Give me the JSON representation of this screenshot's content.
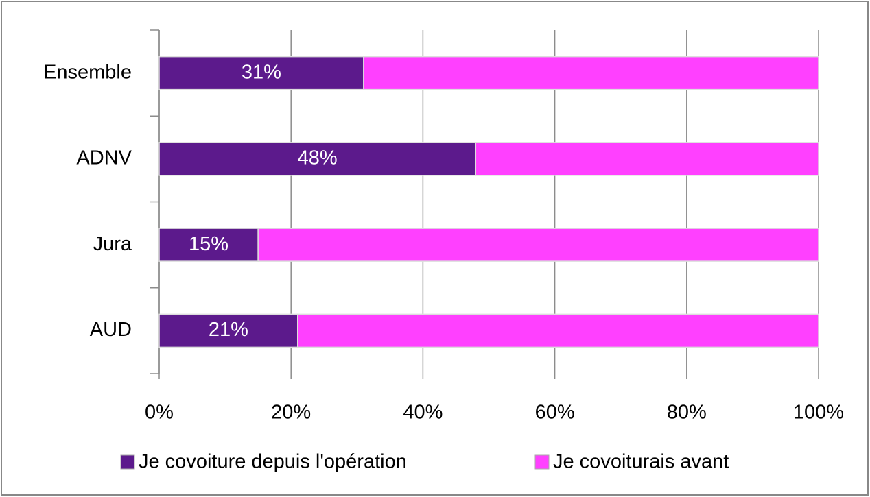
{
  "chart_data": {
    "type": "stacked-barh",
    "categories": [
      "Ensemble",
      "ADNV",
      "Jura",
      "AUD"
    ],
    "series": [
      {
        "name": "Je covoiture depuis l'opération",
        "color": "#5c1a8c",
        "values": [
          31,
          48,
          15,
          21
        ],
        "value_labels": [
          "31%",
          "48%",
          "15%",
          "21%"
        ]
      },
      {
        "name": "Je covoiturais avant",
        "color": "#ff40ff",
        "values": [
          69,
          52,
          85,
          79
        ]
      }
    ],
    "xlim": [
      0,
      100
    ],
    "xticks": [
      {
        "value": 0,
        "label": "0%"
      },
      {
        "value": 20,
        "label": "20%"
      },
      {
        "value": 40,
        "label": "40%"
      },
      {
        "value": 60,
        "label": "60%"
      },
      {
        "value": 80,
        "label": "80%"
      },
      {
        "value": 100,
        "label": "100%"
      }
    ],
    "grid": true,
    "legend": "bottom"
  }
}
